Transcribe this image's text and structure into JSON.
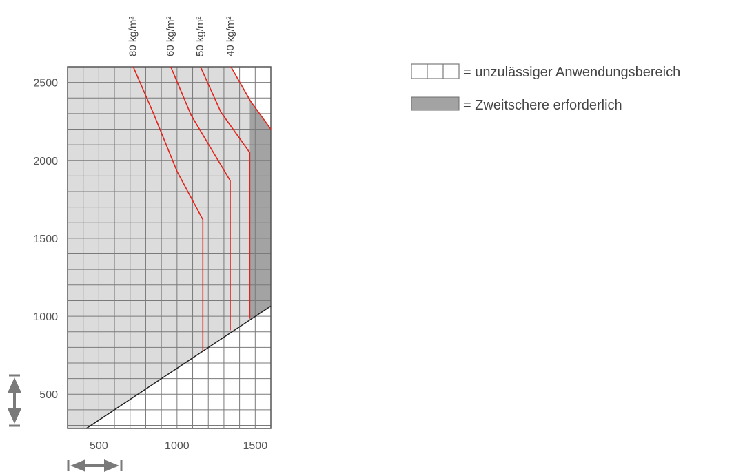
{
  "chart_data": {
    "type": "line",
    "title": "",
    "xlabel": "",
    "ylabel": "",
    "xlim": [
      300,
      1600
    ],
    "ylim": [
      280,
      2600
    ],
    "grid": true,
    "x_ticks": [
      500,
      1000,
      1500
    ],
    "y_ticks": [
      500,
      1000,
      1500,
      2000,
      2500
    ],
    "x_tick_labels": [
      "500",
      "1000",
      "1500"
    ],
    "y_tick_labels": [
      "500",
      "1000",
      "1500",
      "2000",
      "2500"
    ],
    "series": [
      {
        "name": "80 kg/m²",
        "points": [
          [
            720,
            2600
          ],
          [
            850,
            2300
          ],
          [
            1000,
            1930
          ],
          [
            1165,
            1620
          ],
          [
            1165,
            780
          ]
        ]
      },
      {
        "name": "60 kg/m²",
        "points": [
          [
            960,
            2600
          ],
          [
            1090,
            2290
          ],
          [
            1340,
            1870
          ],
          [
            1340,
            910
          ]
        ]
      },
      {
        "name": "50 kg/m²",
        "points": [
          [
            1150,
            2600
          ],
          [
            1280,
            2310
          ],
          [
            1465,
            2050
          ],
          [
            1465,
            985
          ]
        ]
      },
      {
        "name": "40 kg/m²",
        "points": [
          [
            1345,
            2600
          ],
          [
            1470,
            2380
          ],
          [
            1600,
            2200
          ]
        ]
      }
    ],
    "boundary_line": [
      [
        420,
        280
      ],
      [
        1600,
        1065
      ]
    ],
    "legend": [
      {
        "label": "= unzulässiger Anwendungsbereich",
        "swatch": "empty-grid"
      },
      {
        "label": "= Zweitschere erforderlich",
        "swatch": "dark-gray"
      }
    ],
    "legend_position": "top-right",
    "colors": {
      "series": "#e2231a",
      "allowed_area": "#dcdcdc",
      "second_shears_area": "#a3a3a3",
      "grid": "#7a7a7a",
      "arrow": "#7a7a7a"
    }
  }
}
